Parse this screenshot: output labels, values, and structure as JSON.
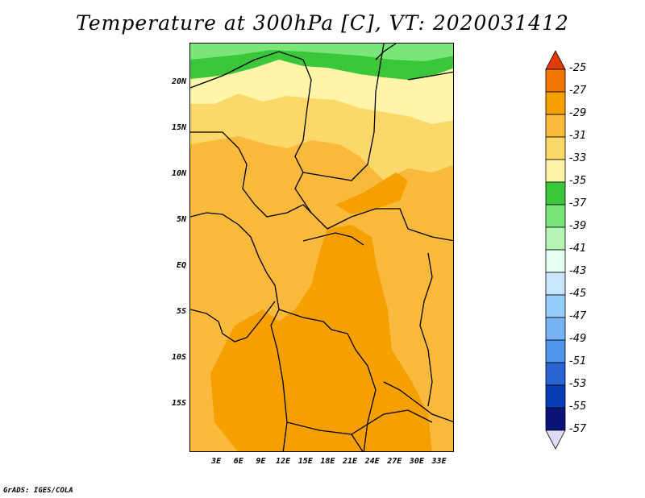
{
  "title": "Temperature at 300hPa [C], VT: 2020031412",
  "footer": "GrADS: IGES/COLA",
  "y_ticks": [
    {
      "label": "20N",
      "lat": 20
    },
    {
      "label": "15N",
      "lat": 15
    },
    {
      "label": "10N",
      "lat": 10
    },
    {
      "label": "5N",
      "lat": 5
    },
    {
      "label": "EQ",
      "lat": 0
    },
    {
      "label": "5S",
      "lat": -5
    },
    {
      "label": "10S",
      "lat": -10
    },
    {
      "label": "15S",
      "lat": -15
    }
  ],
  "x_ticks": [
    {
      "label": "3E",
      "lon": 3
    },
    {
      "label": "6E",
      "lon": 6
    },
    {
      "label": "9E",
      "lon": 9
    },
    {
      "label": "12E",
      "lon": 12
    },
    {
      "label": "15E",
      "lon": 15
    },
    {
      "label": "18E",
      "lon": 18
    },
    {
      "label": "21E",
      "lon": 21
    },
    {
      "label": "24E",
      "lon": 24
    },
    {
      "label": "27E",
      "lon": 27
    },
    {
      "label": "30E",
      "lon": 30
    },
    {
      "label": "33E",
      "lon": 33
    }
  ],
  "colorbar": {
    "levels": [
      "-25",
      "-27",
      "-29",
      "-31",
      "-33",
      "-35",
      "-37",
      "-39",
      "-41",
      "-43",
      "-45",
      "-47",
      "-49",
      "-51",
      "-53",
      "-55",
      "-57"
    ],
    "colors": [
      "#e03c00",
      "#f07800",
      "#f5a000",
      "#f8b93c",
      "#fcd86a",
      "#fff5a8",
      "#3ac83a",
      "#78e678",
      "#b4f5b4",
      "#e6fff0",
      "#c8e6ff",
      "#96cdff",
      "#78b4f5",
      "#5096eb",
      "#2864d2",
      "#0a3cb4",
      "#0a1478",
      "#dcdcf5"
    ]
  },
  "field_colors": {
    "c25": "#f07800",
    "c27": "#f5a000",
    "c29": "#f8b93c",
    "c31": "#fcd86a",
    "c33": "#fff5a8",
    "c35": "#3ac83a",
    "c37": "#78e678"
  }
}
